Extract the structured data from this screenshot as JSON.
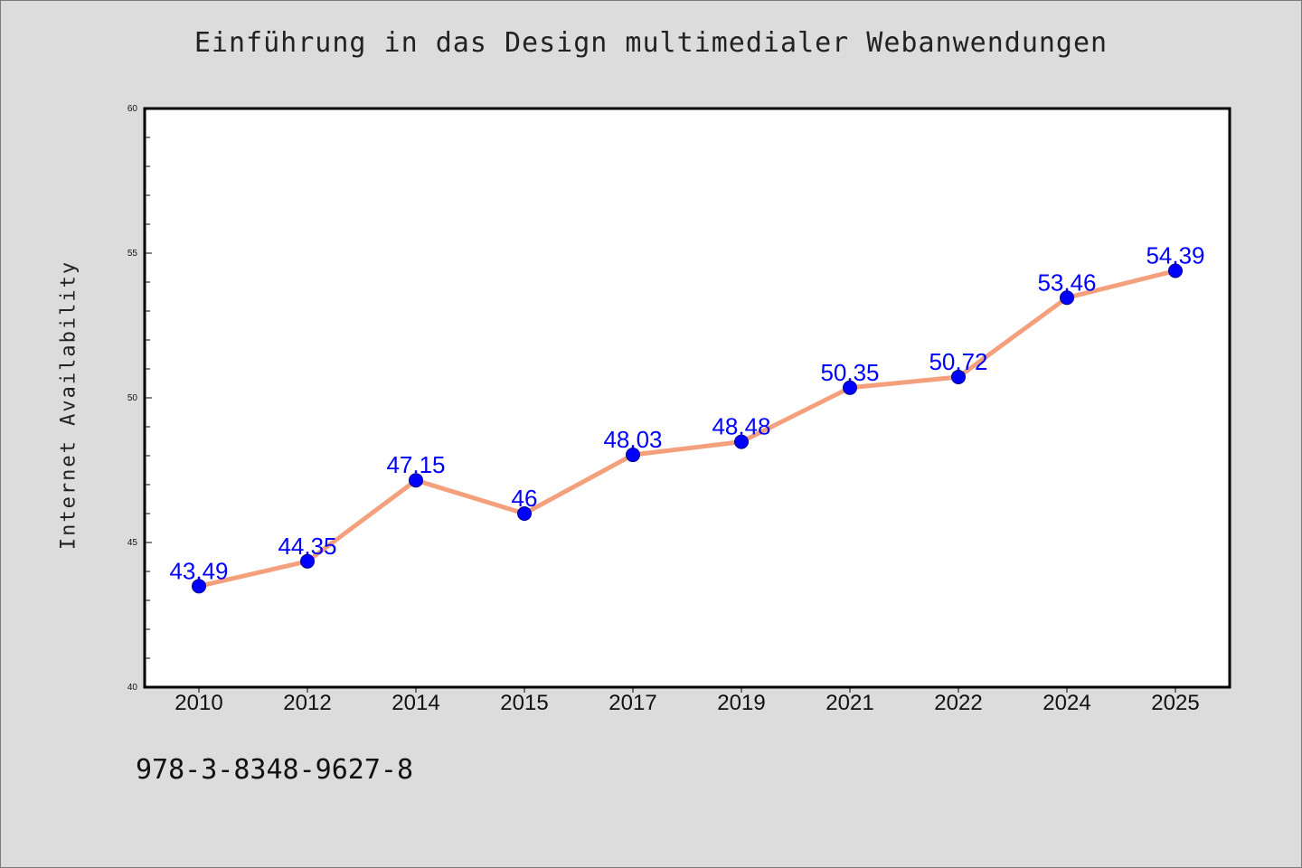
{
  "title": "Einführung in das Design multimedialer Webanwendungen",
  "footer_text": "978-3-8348-9627-8",
  "colors": {
    "background": "#dcdcdc",
    "plot_background": "#ffffff",
    "line": "#f4a07c",
    "marker": "#0000ff",
    "marker_edge": "#00008b",
    "data_label": "#0000ff"
  },
  "chart_data": {
    "type": "line",
    "title": "Einführung in das Design multimedialer Webanwendungen",
    "xlabel": "",
    "ylabel": "Internet Availability",
    "categories": [
      "2010",
      "2012",
      "2014",
      "2015",
      "2017",
      "2019",
      "2021",
      "2022",
      "2024",
      "2025"
    ],
    "series": [
      {
        "values": [
          43.49,
          44.35,
          47.15,
          46,
          48.03,
          48.48,
          50.35,
          50.72,
          53.46,
          54.39
        ],
        "data_labels": [
          "43.49",
          "44.35",
          "47.15",
          "46",
          "48.03",
          "48.48",
          "50.35",
          "50.72",
          "53.46",
          "54.39"
        ]
      }
    ],
    "ylim": [
      40,
      60
    ],
    "y_ticks": [
      "40",
      "45",
      "50",
      "55",
      "60"
    ],
    "grid": false,
    "legend": "none"
  }
}
